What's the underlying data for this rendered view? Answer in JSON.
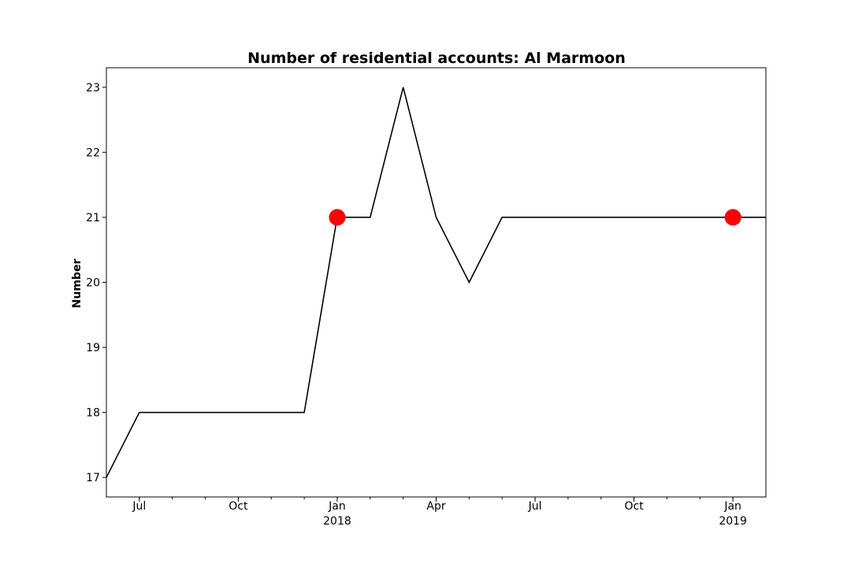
{
  "chart_data": {
    "type": "line",
    "title": "Number of residential accounts: Al Marmoon",
    "xlabel": "",
    "ylabel": "Number",
    "x": [
      "2017-06",
      "2017-07",
      "2017-08",
      "2017-09",
      "2017-10",
      "2017-11",
      "2017-12",
      "2018-01",
      "2018-02",
      "2018-03",
      "2018-04",
      "2018-05",
      "2018-06",
      "2018-07",
      "2018-08",
      "2018-09",
      "2018-10",
      "2018-11",
      "2018-12",
      "2019-01",
      "2019-02"
    ],
    "series": [
      {
        "values": [
          17,
          18,
          18,
          18,
          18,
          18,
          18,
          21,
          21,
          23,
          21,
          20,
          21,
          21,
          21,
          21,
          21,
          21,
          21,
          21,
          21
        ]
      }
    ],
    "highlighted_points": [
      {
        "x": "2018-01",
        "y": 21
      },
      {
        "x": "2019-01",
        "y": 21
      }
    ],
    "xlim": [
      "2017-06",
      "2019-02"
    ],
    "ylim": [
      16.7,
      23.3
    ],
    "yticks": [
      17,
      18,
      19,
      20,
      21,
      22,
      23
    ],
    "xticks": [
      {
        "x": "2017-07",
        "label": "Jul",
        "sublabel": ""
      },
      {
        "x": "2017-10",
        "label": "Oct",
        "sublabel": ""
      },
      {
        "x": "2018-01",
        "label": "Jan",
        "sublabel": "2018"
      },
      {
        "x": "2018-04",
        "label": "Apr",
        "sublabel": ""
      },
      {
        "x": "2018-07",
        "label": "Jul",
        "sublabel": ""
      },
      {
        "x": "2018-10",
        "label": "Oct",
        "sublabel": ""
      },
      {
        "x": "2019-01",
        "label": "Jan",
        "sublabel": "2019"
      }
    ],
    "grid": false,
    "line_color": "#000000",
    "marker_color": "#ff0000"
  }
}
